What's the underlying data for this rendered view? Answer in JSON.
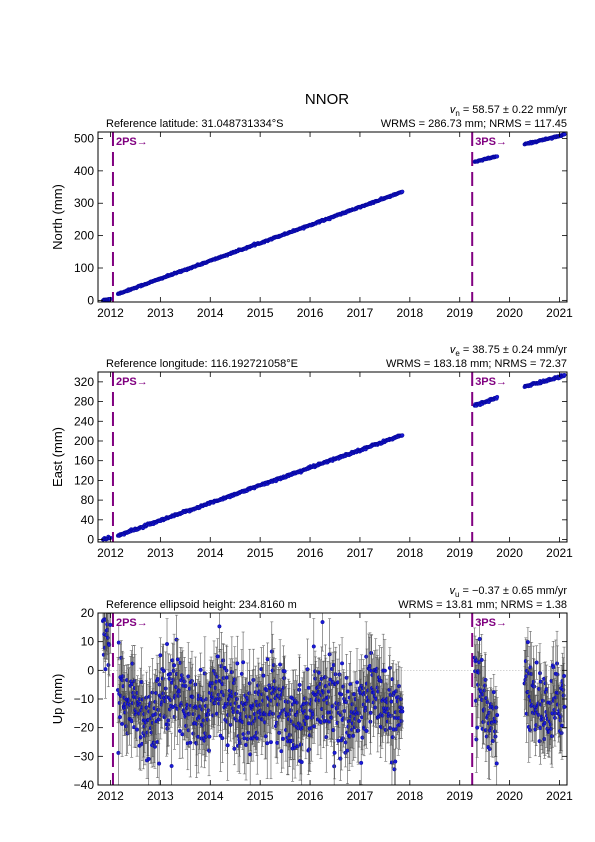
{
  "page": {
    "title": "NNOR"
  },
  "colors": {
    "points": "#1a1ad6",
    "points_edge": "#00008b",
    "errorbars": "#555555",
    "ps_line": "#800080",
    "zero_line": "#bbbbbb"
  },
  "events": [
    {
      "label": "2PS→",
      "x": 2012.05
    },
    {
      "label": "3PS→",
      "x": 2019.25
    }
  ],
  "chart_data": [
    {
      "type": "scatter",
      "panel": "north",
      "ylabel": "North (mm)",
      "info_left": "Reference latitude: 31.048731334°S",
      "rate": "vn = 58.57 ± 0.22 mm/yr",
      "stats": "WRMS = 286.73 mm; NRMS = 117.45",
      "xlim": [
        2011.75,
        2021.15
      ],
      "ylim": [
        -5,
        520
      ],
      "xticks": [
        2012,
        2013,
        2014,
        2015,
        2016,
        2017,
        2018,
        2019,
        2020,
        2021
      ],
      "yticks": [
        0,
        100,
        200,
        300,
        400,
        500
      ],
      "segments": [
        {
          "x": [
            2011.85,
            2011.95,
            2012.0
          ],
          "y": [
            0,
            3,
            5
          ]
        },
        {
          "x": [
            2012.15,
            2017.85
          ],
          "y": [
            20,
            335
          ]
        },
        {
          "x": [
            2019.3,
            2019.75
          ],
          "y": [
            428,
            445
          ]
        },
        {
          "x": [
            2020.3,
            2021.1
          ],
          "y": [
            482,
            512
          ]
        }
      ],
      "error": 2
    },
    {
      "type": "scatter",
      "panel": "east",
      "ylabel": "East (mm)",
      "info_left": "Reference longitude: 116.192721058°E",
      "rate": "ve = 38.75 ± 0.24 mm/yr",
      "stats": "WRMS = 183.18 mm; NRMS = 72.37",
      "xlim": [
        2011.75,
        2021.15
      ],
      "ylim": [
        -5,
        340
      ],
      "xticks": [
        2012,
        2013,
        2014,
        2015,
        2016,
        2017,
        2018,
        2019,
        2020,
        2021
      ],
      "yticks": [
        0,
        40,
        80,
        120,
        160,
        200,
        240,
        280,
        320
      ],
      "segments": [
        {
          "x": [
            2011.85,
            2011.95,
            2012.0
          ],
          "y": [
            0,
            2,
            4
          ]
        },
        {
          "x": [
            2012.15,
            2017.85
          ],
          "y": [
            8,
            212
          ]
        },
        {
          "x": [
            2019.3,
            2019.75
          ],
          "y": [
            272,
            288
          ]
        },
        {
          "x": [
            2020.3,
            2021.1
          ],
          "y": [
            310,
            333
          ]
        }
      ],
      "error": 2
    },
    {
      "type": "scatter",
      "panel": "up",
      "ylabel": "Up (mm)",
      "info_left": "Reference ellipsoid height: 234.8160 m",
      "rate": "vu = −0.37 ± 0.65 mm/yr",
      "stats": "WRMS = 13.81 mm; NRMS = 1.38",
      "xlim": [
        2011.75,
        2021.15
      ],
      "ylim": [
        -40,
        20
      ],
      "xticks": [
        2012,
        2013,
        2014,
        2015,
        2016,
        2017,
        2018,
        2019,
        2020,
        2021
      ],
      "yticks": [
        -40,
        -30,
        -20,
        -10,
        0,
        10,
        20
      ],
      "segments": [
        {
          "x": [
            2011.85,
            2012.0
          ],
          "y": [
            10,
            12
          ]
        },
        {
          "x": [
            2012.15,
            2017.85
          ],
          "y": [
            -12,
            -12
          ]
        },
        {
          "x": [
            2019.3,
            2019.75
          ],
          "y": [
            -12,
            -12
          ]
        },
        {
          "x": [
            2020.3,
            2021.1
          ],
          "y": [
            -10,
            -10
          ]
        }
      ],
      "noise": 7,
      "error": 8,
      "zero_line": true
    }
  ]
}
